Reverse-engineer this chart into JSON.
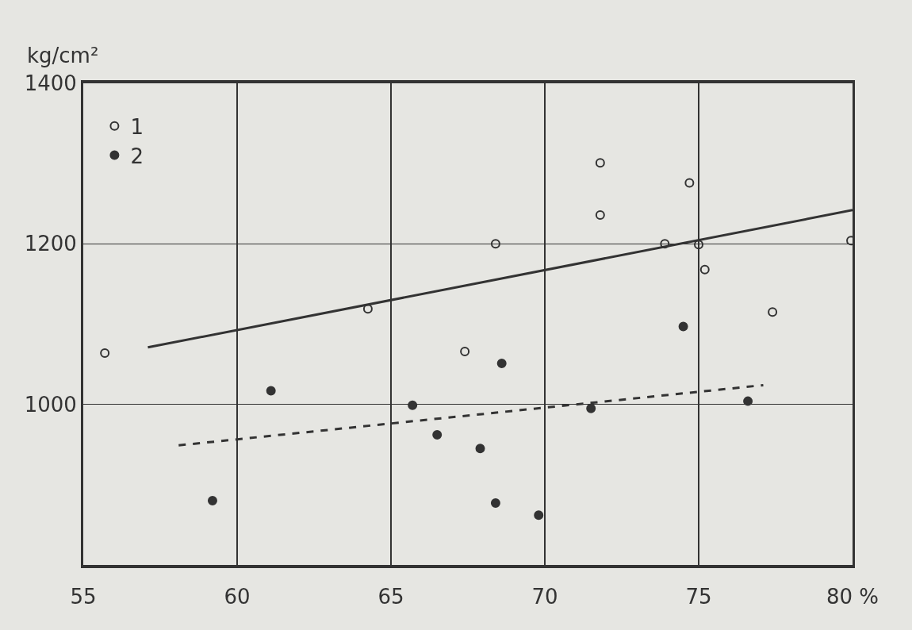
{
  "chart_data": {
    "type": "scatter",
    "ylabel": "kg/cm²",
    "xlim": [
      55,
      80
    ],
    "xticks": [
      55,
      60,
      65,
      70,
      75,
      {
        "value": 80,
        "label": "80 %"
      }
    ],
    "ylim": [
      800,
      1400
    ],
    "yticks": [
      {
        "value": 800,
        "label": null
      },
      1000,
      1200,
      1400
    ],
    "grid": true,
    "legend": "top left",
    "series": [
      {
        "name": "1",
        "marker": "circle-open",
        "color": "#333333",
        "x": [
          55.7,
          64.25,
          67.4,
          68.4,
          71.8,
          71.8,
          73.9,
          74.7,
          75.0,
          75.2,
          77.4,
          79.95
        ],
        "values": [
          1064,
          1119,
          1066,
          1200,
          1301,
          1236,
          1200,
          1276,
          1199,
          1168,
          1115,
          1204
        ]
      },
      {
        "name": "2",
        "marker": "circle",
        "color": "#333333",
        "x": [
          59.2,
          61.1,
          65.7,
          66.5,
          67.9,
          68.6,
          68.4,
          69.8,
          71.5,
          74.5,
          76.6
        ],
        "values": [
          880,
          1017,
          999,
          962,
          945,
          1051,
          877,
          862,
          995,
          1097,
          1004
        ]
      },
      {
        "type": "line",
        "line_style": "solid",
        "color": "#333333",
        "x": [
          57.1,
          80
        ],
        "values": [
          1071,
          1242
        ]
      },
      {
        "type": "line",
        "line_style": "dashed",
        "color": "#333333",
        "x": [
          58.1,
          77.1
        ],
        "values": [
          949,
          1024
        ]
      }
    ]
  }
}
